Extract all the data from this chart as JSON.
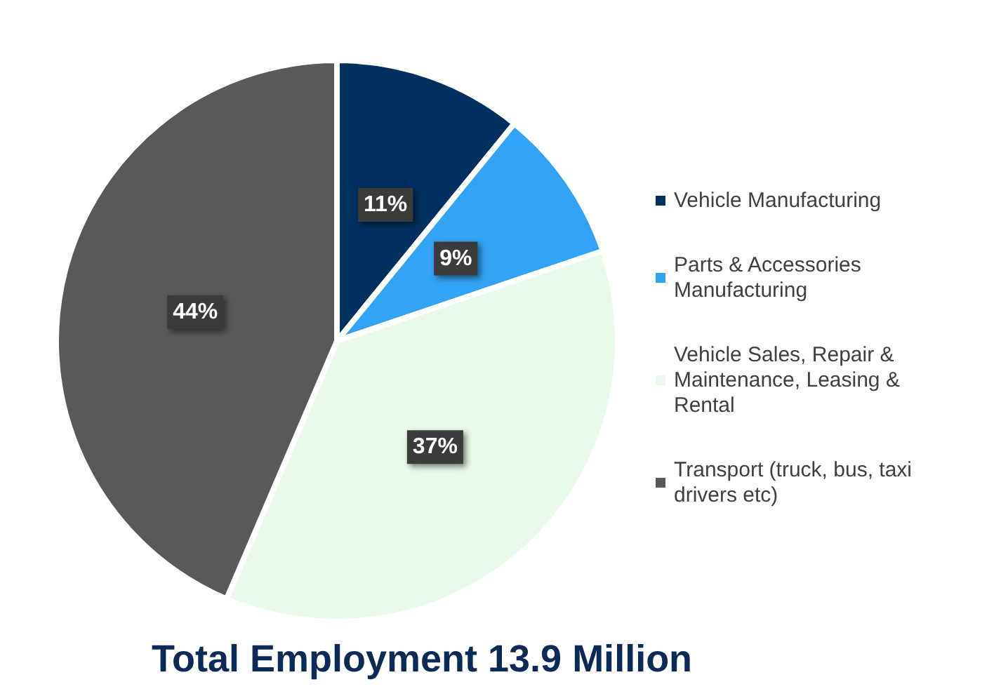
{
  "chart_data": {
    "type": "pie",
    "title": "Total Employment 13.9 Million",
    "categories": [
      "Vehicle Manufacturing",
      "Parts & Accessories Manufacturing",
      "Vehicle Sales, Repair & Maintenance, Leasing & Rental",
      "Transport (truck, bus, taxi drivers etc)"
    ],
    "values": [
      11,
      9,
      37,
      44
    ],
    "colors": [
      "#00305e",
      "#33a3f5",
      "#eafaea",
      "#595959"
    ],
    "value_labels": [
      "11%",
      "9%",
      "37%",
      "44%"
    ],
    "legend": "right"
  }
}
